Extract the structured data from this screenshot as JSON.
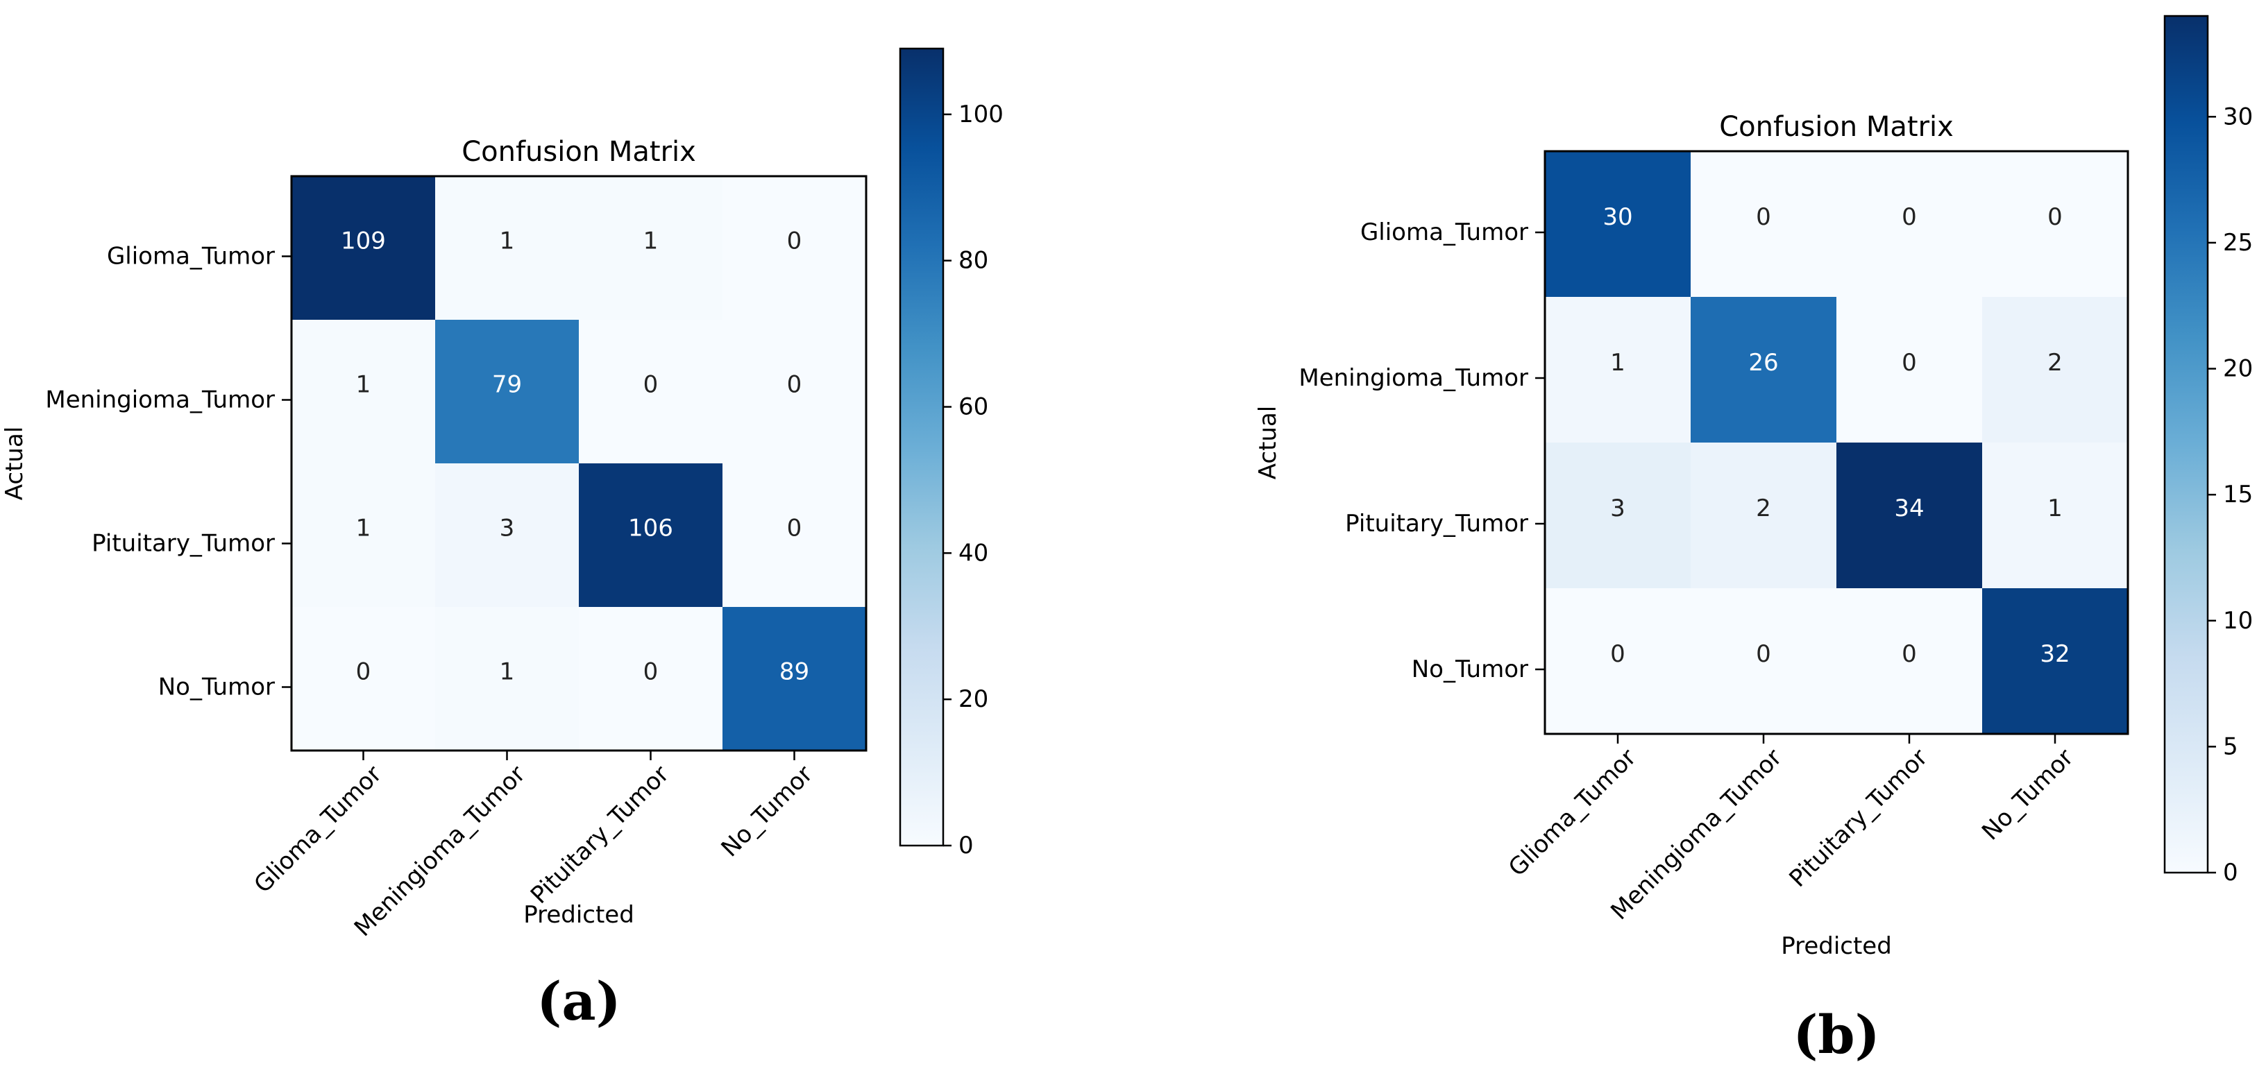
{
  "chart_data": [
    {
      "type": "heatmap",
      "title": "Confusion Matrix",
      "xlabel": "Predicted",
      "ylabel": "Actual",
      "caption": "(a)",
      "x_categories": [
        "Glioma_Tumor",
        "Meningioma_Tumor",
        "Pituitary_Tumor",
        "No_Tumor"
      ],
      "y_categories": [
        "Glioma_Tumor",
        "Meningioma_Tumor",
        "Pituitary_Tumor",
        "No_Tumor"
      ],
      "matrix": [
        [
          109,
          1,
          1,
          0
        ],
        [
          1,
          79,
          0,
          0
        ],
        [
          1,
          3,
          106,
          0
        ],
        [
          0,
          1,
          0,
          89
        ]
      ],
      "colorscale": "Blues",
      "colorbar_range": [
        0,
        109
      ],
      "colorbar_ticks": [
        0,
        20,
        40,
        60,
        80,
        100
      ]
    },
    {
      "type": "heatmap",
      "title": "Confusion Matrix",
      "xlabel": "Predicted",
      "ylabel": "Actual",
      "caption": "(b)",
      "x_categories": [
        "Glioma_Tumor",
        "Meningioma_Tumor",
        "Pituitary_Tumor",
        "No_Tumor"
      ],
      "y_categories": [
        "Glioma_Tumor",
        "Meningioma_Tumor",
        "Pituitary_Tumor",
        "No_Tumor"
      ],
      "matrix": [
        [
          30,
          0,
          0,
          0
        ],
        [
          1,
          26,
          0,
          2
        ],
        [
          3,
          2,
          34,
          1
        ],
        [
          0,
          0,
          0,
          32
        ]
      ],
      "colorscale": "Blues",
      "colorbar_range": [
        0,
        34
      ],
      "colorbar_ticks": [
        0,
        5,
        10,
        15,
        20,
        25,
        30
      ]
    }
  ]
}
